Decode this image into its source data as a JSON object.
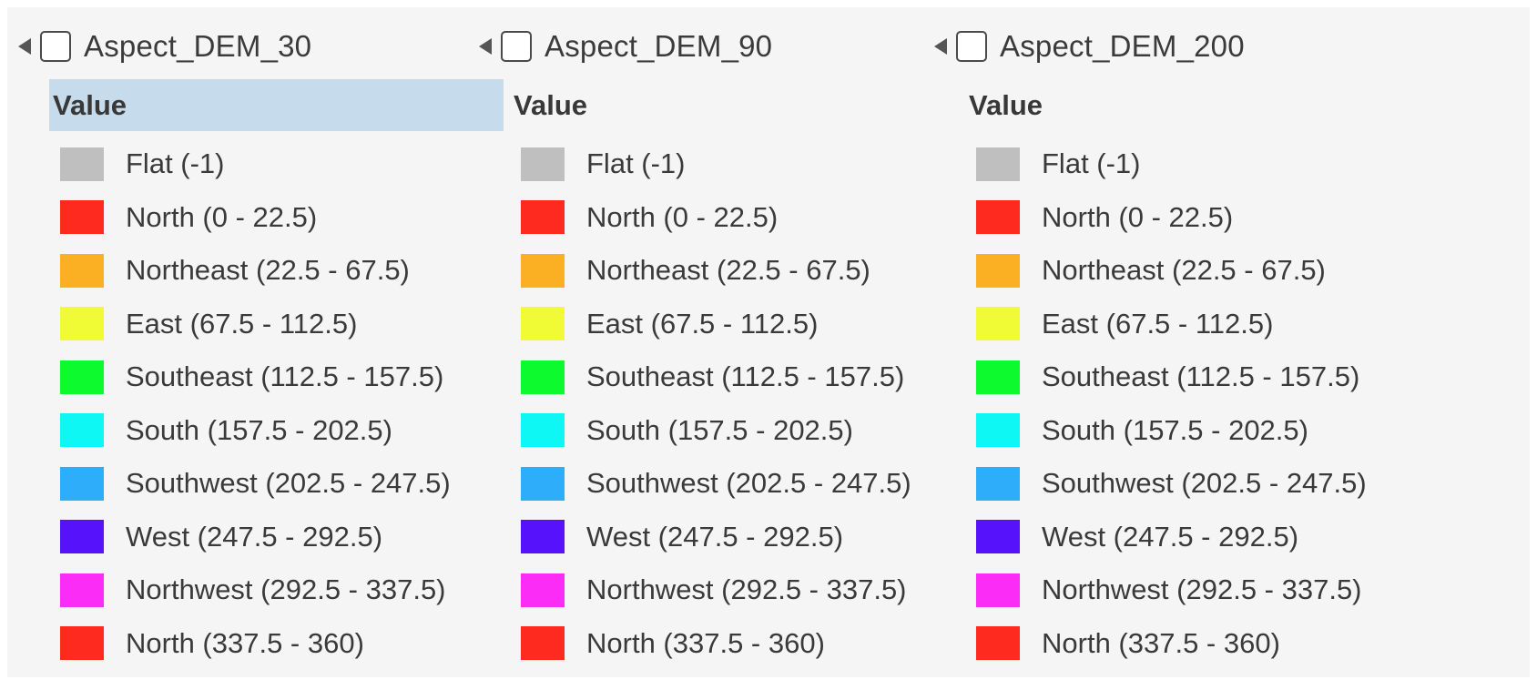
{
  "layers": [
    {
      "name": "Aspect_DEM_30",
      "header": "Value",
      "selected": true,
      "items": [
        {
          "label": "Flat (-1)",
          "color": "#bfbfbf"
        },
        {
          "label": "North (0 - 22.5)",
          "color": "#ff2a1f"
        },
        {
          "label": "Northeast (22.5 - 67.5)",
          "color": "#fbb023"
        },
        {
          "label": "East (67.5 - 112.5)",
          "color": "#f0fb36"
        },
        {
          "label": "Southeast (112.5 - 157.5)",
          "color": "#0dfb2e"
        },
        {
          "label": "South (157.5 - 202.5)",
          "color": "#0ff7f4"
        },
        {
          "label": "Southwest (202.5 - 247.5)",
          "color": "#2eadfb"
        },
        {
          "label": "West (247.5 - 292.5)",
          "color": "#5512fb"
        },
        {
          "label": "Northwest (292.5 - 337.5)",
          "color": "#fb2cf5"
        },
        {
          "label": "North (337.5 - 360)",
          "color": "#ff2a1f"
        }
      ]
    },
    {
      "name": "Aspect_DEM_90",
      "header": "Value",
      "selected": false,
      "items": [
        {
          "label": "Flat (-1)",
          "color": "#bfbfbf"
        },
        {
          "label": "North (0 - 22.5)",
          "color": "#ff2a1f"
        },
        {
          "label": "Northeast (22.5 - 67.5)",
          "color": "#fbb023"
        },
        {
          "label": "East (67.5 - 112.5)",
          "color": "#f0fb36"
        },
        {
          "label": "Southeast (112.5 - 157.5)",
          "color": "#0dfb2e"
        },
        {
          "label": "South (157.5 - 202.5)",
          "color": "#0ff7f4"
        },
        {
          "label": "Southwest (202.5 - 247.5)",
          "color": "#2eadfb"
        },
        {
          "label": "West (247.5 - 292.5)",
          "color": "#5512fb"
        },
        {
          "label": "Northwest (292.5 - 337.5)",
          "color": "#fb2cf5"
        },
        {
          "label": "North (337.5 - 360)",
          "color": "#ff2a1f"
        }
      ]
    },
    {
      "name": "Aspect_DEM_200",
      "header": "Value",
      "selected": false,
      "items": [
        {
          "label": "Flat (-1)",
          "color": "#bfbfbf"
        },
        {
          "label": "North (0 - 22.5)",
          "color": "#ff2a1f"
        },
        {
          "label": "Northeast (22.5 - 67.5)",
          "color": "#fbb023"
        },
        {
          "label": "East (67.5 - 112.5)",
          "color": "#f0fb36"
        },
        {
          "label": "Southeast (112.5 - 157.5)",
          "color": "#0dfb2e"
        },
        {
          "label": "South (157.5 - 202.5)",
          "color": "#0ff7f4"
        },
        {
          "label": "Southwest (202.5 - 247.5)",
          "color": "#2eadfb"
        },
        {
          "label": "West (247.5 - 292.5)",
          "color": "#5512fb"
        },
        {
          "label": "Northwest (292.5 - 337.5)",
          "color": "#fb2cf5"
        },
        {
          "label": "North (337.5 - 360)",
          "color": "#ff2a1f"
        }
      ]
    }
  ],
  "icons": {
    "expander": "collapse-triangle-icon",
    "visibility": "checkbox-icon"
  }
}
